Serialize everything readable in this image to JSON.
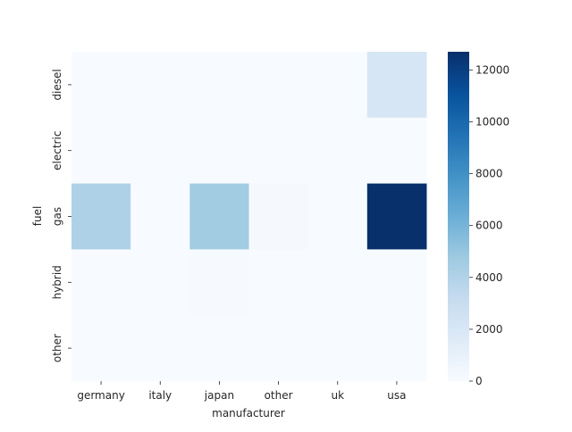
{
  "chart_data": {
    "type": "heatmap",
    "xlabel": "manufacturer",
    "ylabel": "fuel",
    "x_categories": [
      "germany",
      "italy",
      "japan",
      "other",
      "uk",
      "usa"
    ],
    "y_categories": [
      "diesel",
      "electric",
      "gas",
      "hybrid",
      "other"
    ],
    "values": [
      [
        0,
        0,
        0,
        0,
        0,
        2100
      ],
      [
        0,
        0,
        0,
        0,
        0,
        0
      ],
      [
        4100,
        0,
        4600,
        150,
        0,
        12700
      ],
      [
        0,
        0,
        60,
        0,
        0,
        0
      ],
      [
        0,
        0,
        0,
        0,
        0,
        0
      ]
    ],
    "color_range": [
      0,
      12700
    ],
    "colormap": "Blues",
    "colorbar_ticks": [
      0,
      2000,
      4000,
      6000,
      8000,
      10000,
      12000
    ]
  }
}
